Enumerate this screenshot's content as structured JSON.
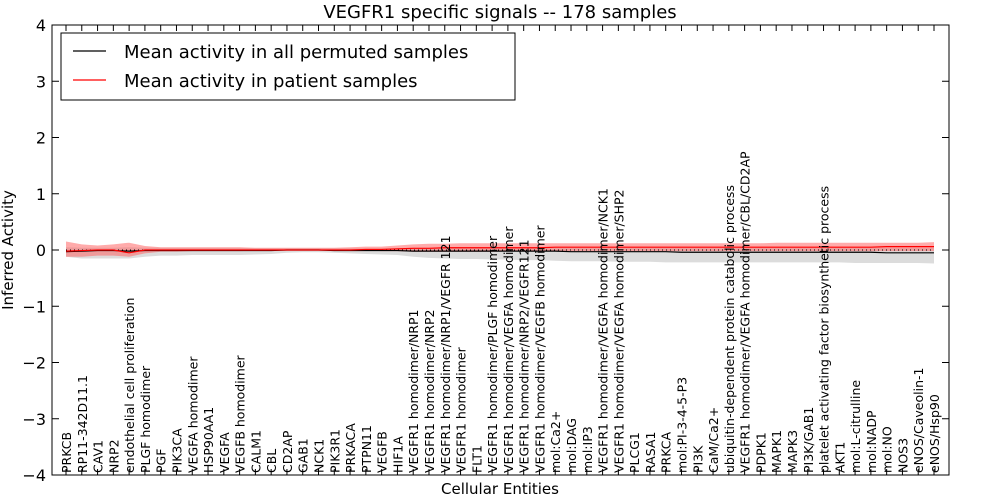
{
  "chart_data": {
    "type": "line",
    "title": "VEGFR1 specific signals -- 178 samples",
    "xlabel": "Cellular Entities",
    "ylabel": "Inferred Activity",
    "ylim": [
      -4,
      4
    ],
    "yticks": [
      -4,
      -3,
      -2,
      -1,
      0,
      1,
      2,
      3,
      4
    ],
    "ytick_labels": [
      "−4",
      "−3",
      "−2",
      "−1",
      "0",
      "1",
      "2",
      "3",
      "4"
    ],
    "grid": false,
    "legend_position": "top-left",
    "categories": [
      "PRKCB",
      "RP11-342D11.1",
      "CAV1",
      "NRP2",
      "endothelial cell proliferation",
      "PLGF homodimer",
      "PGF",
      "PIK3CA",
      "VEGFA homodimer",
      "HSP90AA1",
      "VEGFA",
      "VEGFB homodimer",
      "CALM1",
      "CBL",
      "CD2AP",
      "GAB1",
      "NCK1",
      "PIK3R1",
      "PRKACA",
      "PTPN11",
      "VEGFB",
      "HIF1A",
      "VEGFR1 homodimer/NRP1",
      "VEGFR1 homodimer/NRP2",
      "VEGFR1 homodimer/NRP1/VEGFR 121",
      "VEGFR1 homodimer",
      "FLT1",
      "VEGFR1 homodimer/PLGF homodimer",
      "VEGFR1 homodimer/VEGFA homodimer",
      "VEGFR1 homodimer/NRP2/VEGFR121",
      "VEGFR1 homodimer/VEGFB homodimer",
      "mol:Ca2+",
      "mol:DAG",
      "mol:IP3",
      "VEGFR1 homodimer/VEGFA homodimer/NCK1",
      "VEGFR1 homodimer/VEGFA homodimer/SHP2",
      "PLCG1",
      "RASA1",
      "PRKCA",
      "mol:PI-3-4-5-P3",
      "PI3K",
      "CaM/Ca2+",
      "ubiquitin-dependent protein catabolic process",
      "VEGFR1 homodimer/VEGFA homodimer/CBL/CD2AP",
      "PDPK1",
      "MAPK1",
      "MAPK3",
      "PI3K/GAB1",
      "platelet activating factor biosynthetic process",
      "AKT1",
      "mol:L-citrulline",
      "mol:NADP",
      "mol:NO",
      "NOS3",
      "eNOS/Caveolin-1",
      "eNOS/Hsp90"
    ],
    "series": [
      {
        "name": "Mean activity in all permuted samples",
        "color": "#000000",
        "values": [
          -0.03,
          -0.02,
          -0.01,
          -0.01,
          -0.02,
          -0.01,
          -0.01,
          -0.01,
          -0.01,
          -0.01,
          -0.01,
          -0.01,
          -0.01,
          -0.01,
          0.0,
          0.0,
          0.0,
          -0.01,
          -0.01,
          -0.01,
          -0.01,
          -0.01,
          -0.02,
          -0.02,
          -0.02,
          -0.02,
          -0.02,
          -0.02,
          -0.02,
          -0.02,
          -0.02,
          -0.02,
          -0.03,
          -0.03,
          -0.03,
          -0.03,
          -0.03,
          -0.03,
          -0.03,
          -0.04,
          -0.04,
          -0.04,
          -0.04,
          -0.04,
          -0.04,
          -0.04,
          -0.04,
          -0.04,
          -0.04,
          -0.04,
          -0.04,
          -0.04,
          -0.05,
          -0.05,
          -0.05,
          -0.05
        ],
        "band_low": [
          -0.12,
          -0.15,
          -0.15,
          -0.15,
          -0.15,
          -0.12,
          -0.1,
          -0.1,
          -0.09,
          -0.09,
          -0.09,
          -0.09,
          -0.08,
          -0.07,
          -0.05,
          -0.04,
          -0.04,
          -0.05,
          -0.06,
          -0.07,
          -0.08,
          -0.09,
          -0.12,
          -0.14,
          -0.15,
          -0.16,
          -0.16,
          -0.17,
          -0.17,
          -0.18,
          -0.18,
          -0.19,
          -0.2,
          -0.2,
          -0.2,
          -0.21,
          -0.21,
          -0.21,
          -0.22,
          -0.22,
          -0.22,
          -0.22,
          -0.22,
          -0.22,
          -0.22,
          -0.22,
          -0.22,
          -0.22,
          -0.22,
          -0.22,
          -0.23,
          -0.23,
          -0.23,
          -0.23,
          -0.23,
          -0.24
        ],
        "band_high": [
          0.05,
          0.04,
          0.04,
          0.04,
          0.05,
          0.04,
          0.04,
          0.04,
          0.04,
          0.04,
          0.04,
          0.04,
          0.03,
          0.03,
          0.03,
          0.03,
          0.03,
          0.03,
          0.03,
          0.03,
          0.03,
          0.03,
          0.04,
          0.04,
          0.04,
          0.04,
          0.04,
          0.04,
          0.04,
          0.04,
          0.04,
          0.04,
          0.04,
          0.04,
          0.04,
          0.04,
          0.04,
          0.04,
          0.04,
          0.04,
          0.04,
          0.04,
          0.04,
          0.04,
          0.04,
          0.04,
          0.04,
          0.04,
          0.04,
          0.04,
          0.04,
          0.04,
          0.04,
          0.04,
          0.04,
          0.04
        ]
      },
      {
        "name": "Mean activity in patient samples",
        "color": "#ff0000",
        "values": [
          -0.02,
          -0.01,
          0.0,
          0.0,
          -0.05,
          0.0,
          0.0,
          0.0,
          0.0,
          0.0,
          0.0,
          0.0,
          0.0,
          0.0,
          0.0,
          0.0,
          0.0,
          0.0,
          0.0,
          0.01,
          0.01,
          0.02,
          0.03,
          0.03,
          0.04,
          0.04,
          0.04,
          0.04,
          0.04,
          0.04,
          0.04,
          0.05,
          0.05,
          0.05,
          0.05,
          0.05,
          0.05,
          0.05,
          0.05,
          0.05,
          0.05,
          0.05,
          0.05,
          0.05,
          0.05,
          0.05,
          0.05,
          0.05,
          0.05,
          0.05,
          0.05,
          0.05,
          0.06,
          0.06,
          0.06,
          0.06
        ],
        "band_low": [
          -0.12,
          -0.12,
          -0.1,
          -0.1,
          -0.12,
          -0.06,
          -0.03,
          -0.03,
          -0.02,
          -0.02,
          -0.02,
          -0.02,
          -0.01,
          -0.01,
          -0.01,
          -0.01,
          -0.01,
          -0.01,
          -0.01,
          -0.01,
          -0.02,
          -0.02,
          -0.03,
          -0.03,
          -0.03,
          -0.03,
          -0.03,
          -0.03,
          -0.02,
          -0.02,
          -0.02,
          -0.02,
          -0.02,
          -0.02,
          -0.02,
          -0.02,
          -0.02,
          -0.02,
          -0.02,
          -0.02,
          -0.02,
          -0.02,
          -0.02,
          -0.02,
          -0.02,
          -0.02,
          -0.02,
          -0.02,
          -0.02,
          -0.02,
          -0.02,
          -0.02,
          -0.02,
          -0.02,
          -0.02,
          -0.02
        ],
        "band_high": [
          0.15,
          0.1,
          0.08,
          0.1,
          0.13,
          0.07,
          0.05,
          0.05,
          0.05,
          0.05,
          0.05,
          0.05,
          0.04,
          0.04,
          0.04,
          0.04,
          0.04,
          0.04,
          0.05,
          0.06,
          0.06,
          0.08,
          0.1,
          0.11,
          0.11,
          0.12,
          0.12,
          0.12,
          0.12,
          0.12,
          0.12,
          0.12,
          0.12,
          0.12,
          0.12,
          0.12,
          0.12,
          0.12,
          0.12,
          0.12,
          0.12,
          0.12,
          0.12,
          0.12,
          0.12,
          0.13,
          0.13,
          0.13,
          0.13,
          0.13,
          0.13,
          0.13,
          0.13,
          0.13,
          0.13,
          0.14
        ]
      }
    ],
    "reference_line": {
      "value": 0,
      "color": "#000000",
      "style": "dotted"
    },
    "band_colors": {
      "permuted": "#c0c0c0",
      "patient": "#ff6666"
    }
  }
}
